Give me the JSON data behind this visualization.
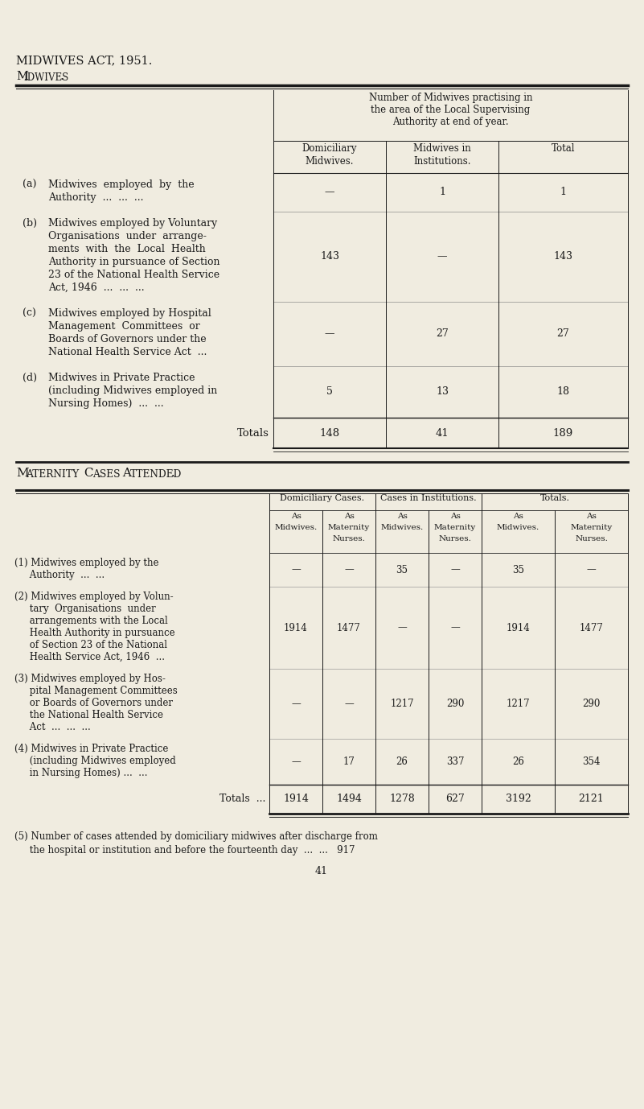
{
  "bg_color": "#f0ece0",
  "text_color": "#1a1a1a",
  "title1": "MIDWIVES ACT, 1951.",
  "title2": "Midwives.",
  "section1_header": "Number of Midwives practising in\nthe area of the Local Supervising\nAuthority at end of year.",
  "section1_col_headers": [
    "Domiciliary\nMidwives.",
    "Midwives in\nInstitutions.",
    "Total"
  ],
  "section1_rows": [
    {
      "letter": "(a)",
      "text_lines": [
        "Midwives  employed  by  the",
        "Authority  ...  ...  ..."
      ],
      "values": [
        "—",
        "1",
        "1"
      ]
    },
    {
      "letter": "(b)",
      "text_lines": [
        "Midwives employed by Voluntary",
        "Organisations  under  arrange-",
        "ments  with  the  Local  Health",
        "Authority in pursuance of Section",
        "23 of the National Health Service",
        "Act, 1946  ...  ...  ..."
      ],
      "values": [
        "143",
        "—",
        "143"
      ]
    },
    {
      "letter": "(c)",
      "text_lines": [
        "Midwives employed by Hospital",
        "Management  Committees  or",
        "Boards of Governors under the",
        "National Health Service Act  ..."
      ],
      "values": [
        "—",
        "27",
        "27"
      ]
    },
    {
      "letter": "(d)",
      "text_lines": [
        "Midwives in Private Practice",
        "(including Midwives employed in",
        "Nursing Homes)  ...  ..."
      ],
      "values": [
        "5",
        "13",
        "18"
      ]
    }
  ],
  "section1_totals_label": "Totals",
  "section1_totals_values": [
    "148",
    "41",
    "189"
  ],
  "section2_title": "Maternity Cases Attended.",
  "section2_group_headers": [
    "Domiciliary Cases.",
    "Cases in Institutions.",
    "Totals."
  ],
  "section2_col_headers": [
    "As\nMidwives.",
    "As\nMaternity\nNurses.",
    "As\nMidwives.",
    "As\nMaternity\nNurses.",
    "As\nMidwives.",
    "As\nMaternity\nNurses."
  ],
  "section2_rows": [
    {
      "label_lines": [
        "(1) Midwives employed by the",
        "     Authority  ...  ..."
      ],
      "values": [
        "—",
        "—",
        "35",
        "—",
        "35",
        "—"
      ]
    },
    {
      "label_lines": [
        "(2) Midwives employed by Volun-",
        "     tary  Organisations  under",
        "     arrangements with the Local",
        "     Health Authority in pursuance",
        "     of Section 23 of the National",
        "     Health Service Act, 1946  ..."
      ],
      "values": [
        "1914",
        "1477",
        "—",
        "—",
        "1914",
        "1477"
      ]
    },
    {
      "label_lines": [
        "(3) Midwives employed by Hos-",
        "     pital Management Committees",
        "     or Boards of Governors under",
        "     the National Health Service",
        "     Act  ...  ...  ..."
      ],
      "values": [
        "—",
        "—",
        "1217",
        "290",
        "1217",
        "290"
      ]
    },
    {
      "label_lines": [
        "(4) Midwives in Private Practice",
        "     (including Midwives employed",
        "     in Nursing Homes) ...  ..."
      ],
      "values": [
        "—",
        "17",
        "26",
        "337",
        "26",
        "354"
      ]
    }
  ],
  "section2_totals_label": "Totals  ...",
  "section2_totals_values": [
    "1914",
    "1494",
    "1278",
    "627",
    "3192",
    "2121"
  ],
  "note_line1": "(5) Number of cases attended by domiciliary midwives after discharge from",
  "note_line2": "     the hospital or institution and before the fourteenth day  ...  ...   917",
  "page_number": "41"
}
